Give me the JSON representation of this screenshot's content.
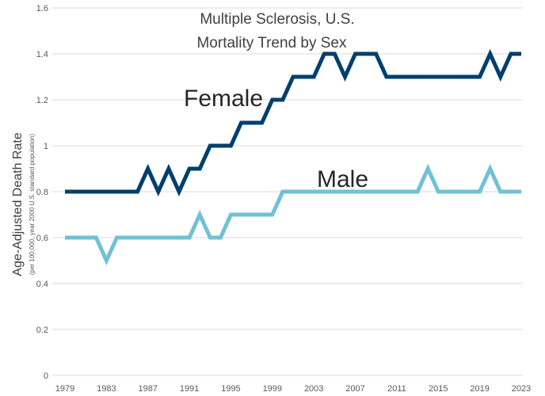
{
  "chart_data": {
    "type": "line",
    "title": "Multiple Sclerosis, U.S.",
    "subtitle": "Mortality Trend by Sex",
    "ylabel": "Age-Adjusted Death Rate",
    "ylabel_sub": "(per 100,000, year 2000 U.S. standard population)",
    "xlabel": "",
    "ylim": [
      0,
      1.6
    ],
    "yticks": [
      "0",
      "0.2",
      "0.4",
      "0.6",
      "0.8",
      "1",
      "1.2",
      "1.4",
      "1.6"
    ],
    "xlim": [
      1979,
      2023
    ],
    "xticks": [
      "1979",
      "1983",
      "1987",
      "1991",
      "1995",
      "1999",
      "2003",
      "2007",
      "2011",
      "2015",
      "2019",
      "2023"
    ],
    "grid": true,
    "x": [
      1979,
      1980,
      1981,
      1982,
      1983,
      1984,
      1985,
      1986,
      1987,
      1988,
      1989,
      1990,
      1991,
      1992,
      1993,
      1994,
      1995,
      1996,
      1997,
      1998,
      1999,
      2000,
      2001,
      2002,
      2003,
      2004,
      2005,
      2006,
      2007,
      2008,
      2009,
      2010,
      2011,
      2012,
      2013,
      2014,
      2015,
      2016,
      2017,
      2018,
      2019,
      2020,
      2021,
      2022,
      2023
    ],
    "series": [
      {
        "name": "Female",
        "color": "#003f6e",
        "values": [
          0.8,
          0.8,
          0.8,
          0.8,
          0.8,
          0.8,
          0.8,
          0.8,
          0.9,
          0.8,
          0.9,
          0.8,
          0.9,
          0.9,
          1.0,
          1.0,
          1.0,
          1.1,
          1.1,
          1.1,
          1.2,
          1.2,
          1.3,
          1.3,
          1.3,
          1.4,
          1.4,
          1.3,
          1.4,
          1.4,
          1.4,
          1.3,
          1.3,
          1.3,
          1.3,
          1.3,
          1.3,
          1.3,
          1.3,
          1.3,
          1.3,
          1.4,
          1.3,
          1.4,
          1.4
        ]
      },
      {
        "name": "Male",
        "color": "#70c1d4",
        "values": [
          0.6,
          0.6,
          0.6,
          0.6,
          0.5,
          0.6,
          0.6,
          0.6,
          0.6,
          0.6,
          0.6,
          0.6,
          0.6,
          0.7,
          0.6,
          0.6,
          0.7,
          0.7,
          0.7,
          0.7,
          0.7,
          0.8,
          0.8,
          0.8,
          0.8,
          0.8,
          0.8,
          0.8,
          0.8,
          0.8,
          0.8,
          0.8,
          0.8,
          0.8,
          0.8,
          0.9,
          0.8,
          0.8,
          0.8,
          0.8,
          0.8,
          0.9,
          0.8,
          0.8,
          0.8
        ]
      }
    ]
  }
}
